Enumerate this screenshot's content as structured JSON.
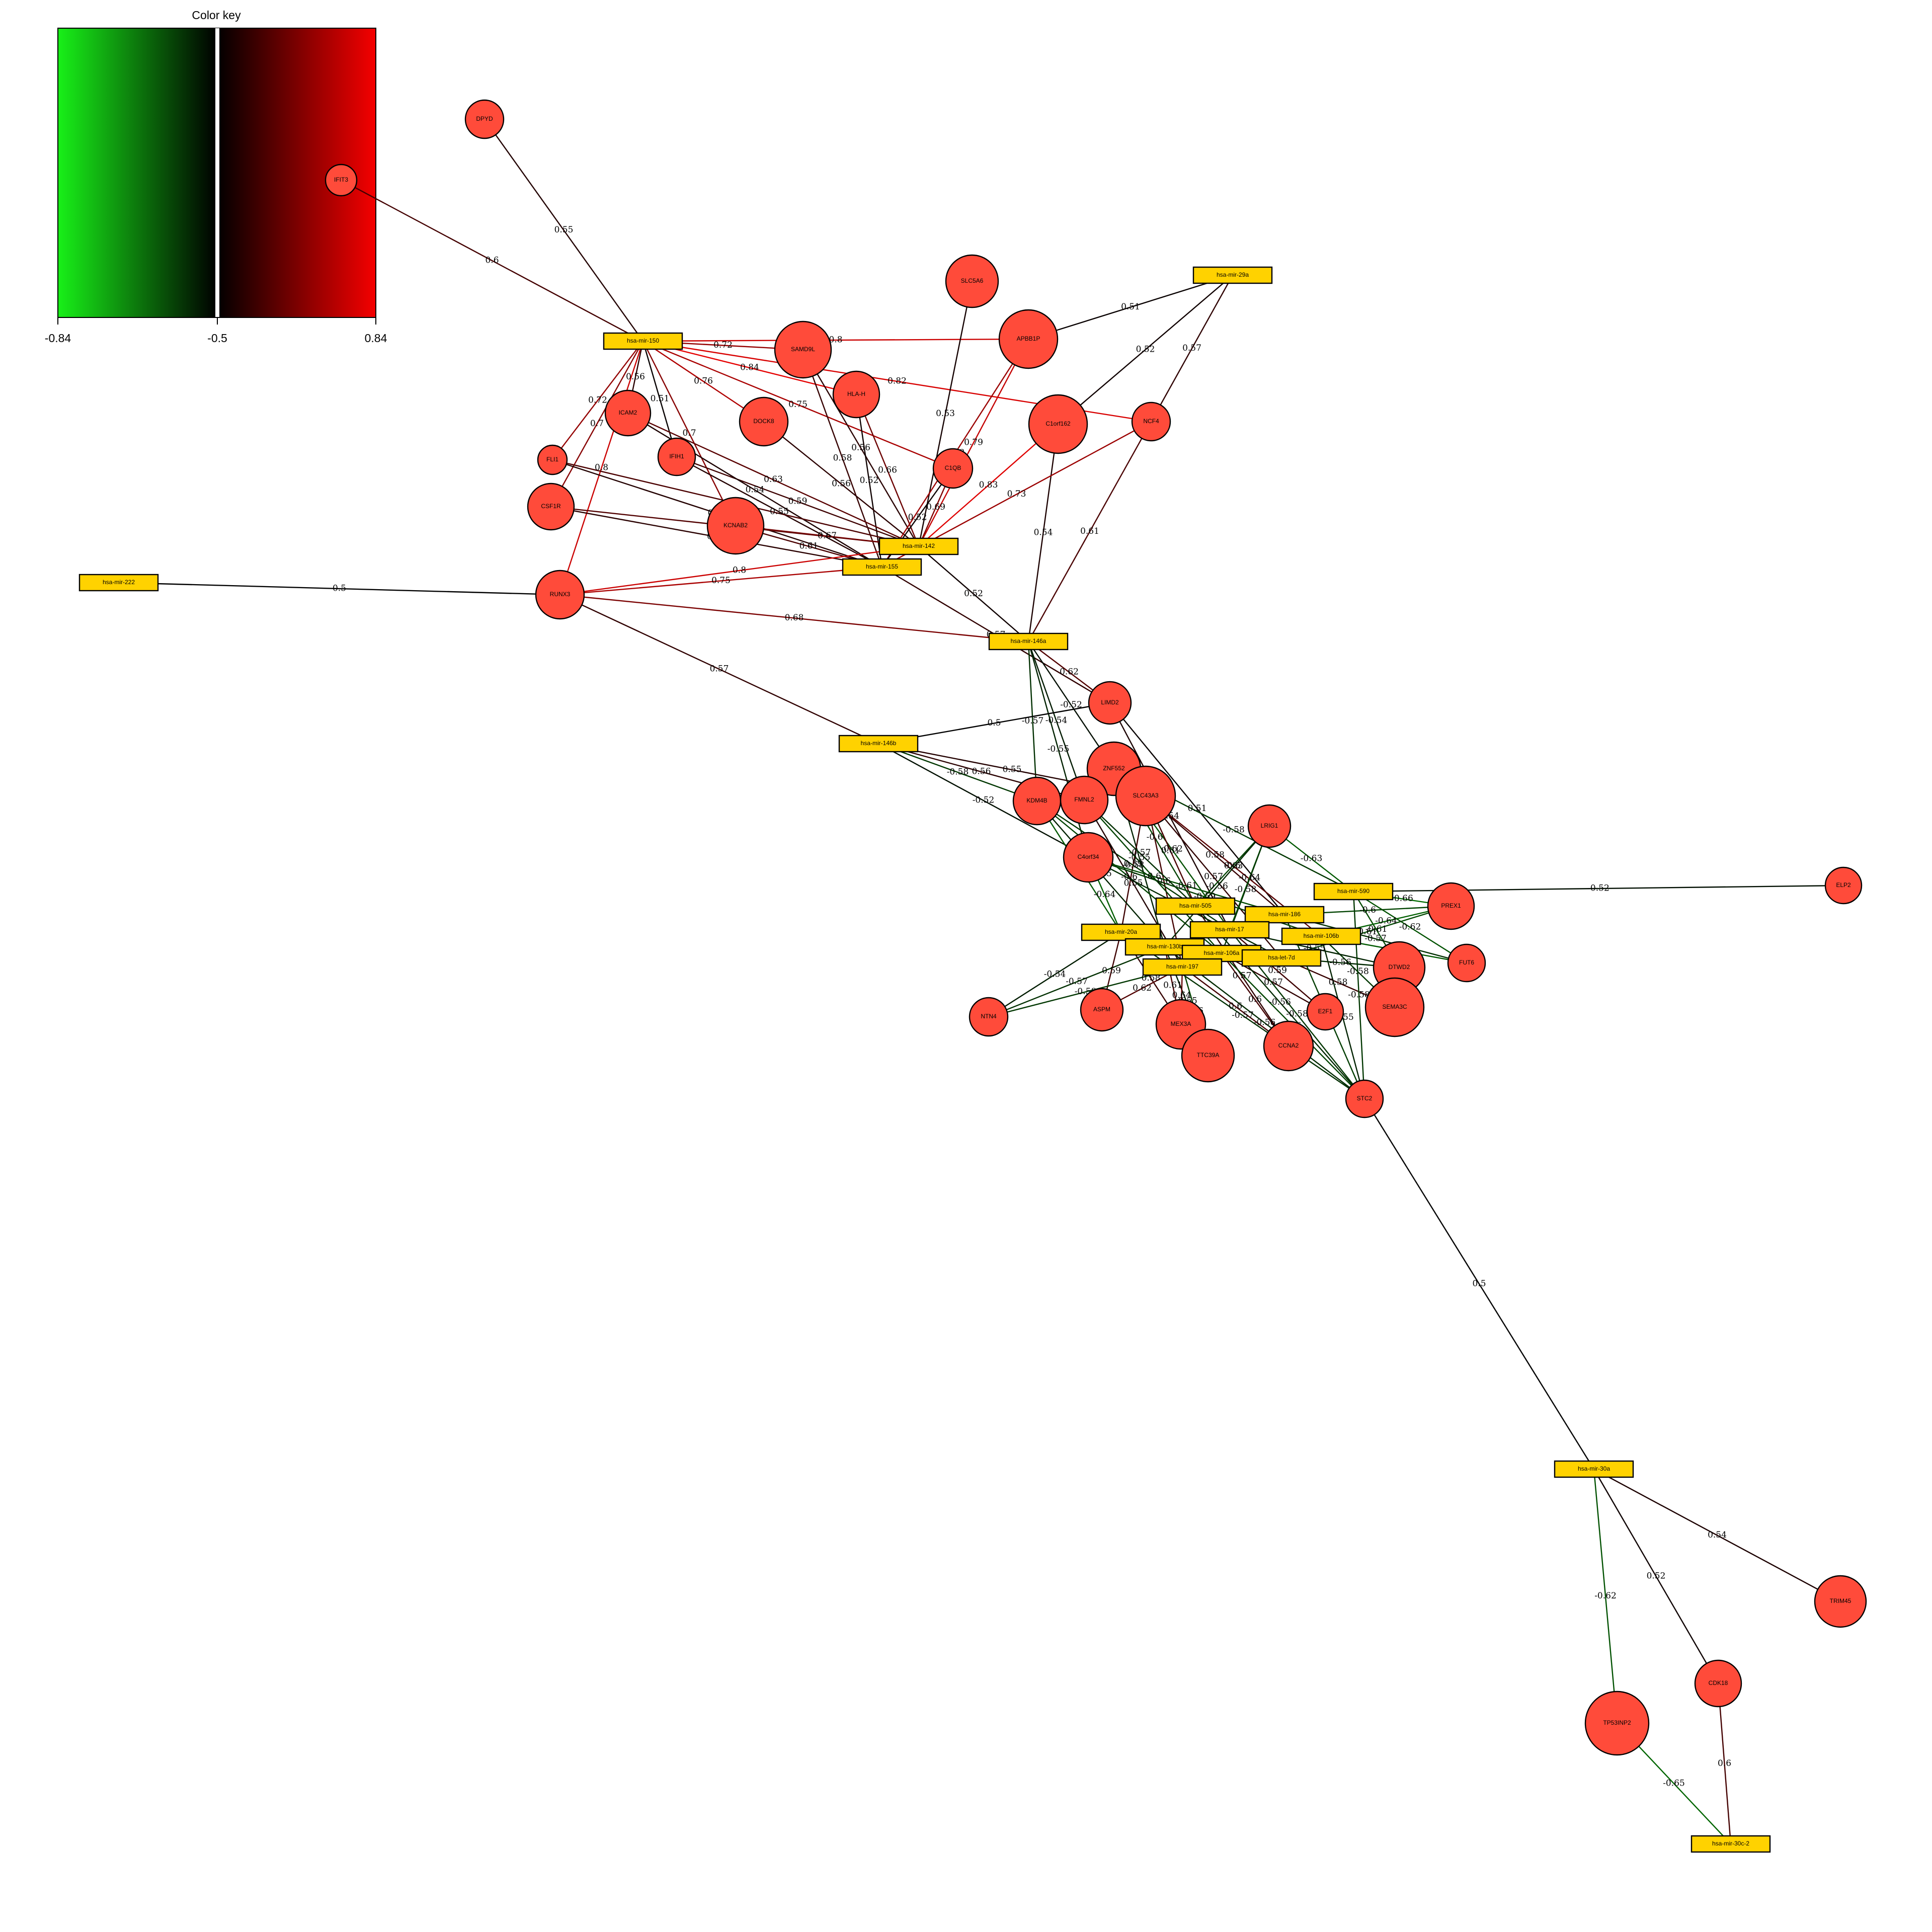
{
  "color_key": {
    "title": "Color key",
    "ticks": [
      "-0.84",
      "-0.5",
      "0.84"
    ],
    "colors": {
      "negative": "#00ff00",
      "zero": "#000000",
      "positive": "#ff0000"
    }
  },
  "colors": {
    "mirna_fill": "#ffd200",
    "gene_fill": "#ff4b3a",
    "node_border": "#000000"
  },
  "mirnas": [
    "hsa-mir-150",
    "hsa-mir-29a",
    "hsa-mir-142",
    "hsa-mir-155",
    "hsa-mir-222",
    "hsa-mir-146a",
    "hsa-mir-146b",
    "hsa-mir-590",
    "hsa-mir-505",
    "hsa-mir-186",
    "hsa-mir-17",
    "hsa-mir-106b",
    "hsa-mir-20a",
    "hsa-mir-130b",
    "hsa-mir-106a",
    "hsa-let-7d",
    "hsa-mir-197",
    "hsa-mir-30a",
    "hsa-mir-30c-2"
  ],
  "genes": [
    "DPYD",
    "IFIT3",
    "SLC5A6",
    "SAMD9L",
    "APBB1P",
    "HLA-H",
    "ICAM2",
    "DOCK8",
    "C1orf162",
    "NCF4",
    "IFIH1",
    "FLI1",
    "C1QB",
    "CSF1R",
    "KCNAB2",
    "RUNX3",
    "LIMD2",
    "ZNF552",
    "KDM4B",
    "FMNL2",
    "SLC43A3",
    "LRIG1",
    "C4orf34",
    "ELP2",
    "PREX1",
    "DTWD2",
    "FUT6",
    "SEMA3C",
    "NTN4",
    "ASPM",
    "MEX3A",
    "E2F1",
    "CCNA2",
    "TTC39A",
    "STC2",
    "TRIM45",
    "CDK18",
    "TP53INP2"
  ],
  "edges": [
    {
      "s": "DPYD",
      "t": "hsa-mir-150",
      "w": 0.55
    },
    {
      "s": "IFIT3",
      "t": "hsa-mir-150",
      "w": 0.6
    },
    {
      "s": "hsa-mir-150",
      "t": "SAMD9L",
      "w": 0.72
    },
    {
      "s": "hsa-mir-150",
      "t": "APBB1P",
      "w": 0.8
    },
    {
      "s": "hsa-mir-150",
      "t": "HLA-H",
      "w": 0.84
    },
    {
      "s": "hsa-mir-150",
      "t": "DOCK8",
      "w": 0.76
    },
    {
      "s": "hsa-mir-150",
      "t": "NCF4",
      "w": 0.82
    },
    {
      "s": "hsa-mir-150",
      "t": "ICAM2",
      "w": 0.56
    },
    {
      "s": "hsa-mir-150",
      "t": "IFIH1",
      "w": 0.51
    },
    {
      "s": "hsa-mir-150",
      "t": "FLI1",
      "w": 0.72
    },
    {
      "s": "hsa-mir-150",
      "t": "CSF1R",
      "w": 0.7
    },
    {
      "s": "hsa-mir-150",
      "t": "RUNX3",
      "w": 0.8
    },
    {
      "s": "hsa-mir-150",
      "t": "KCNAB2",
      "w": 0.7
    },
    {
      "s": "hsa-mir-150",
      "t": "C1QB",
      "w": 0.75
    },
    {
      "s": "hsa-mir-29a",
      "t": "APBB1P",
      "w": 0.51
    },
    {
      "s": "hsa-mir-29a",
      "t": "C1orf162",
      "w": 0.52
    },
    {
      "s": "hsa-mir-29a",
      "t": "NCF4",
      "w": 0.57
    },
    {
      "s": "SLC5A6",
      "t": "hsa-mir-142",
      "w": 0.53
    },
    {
      "s": "SAMD9L",
      "t": "hsa-mir-142",
      "w": 0.56
    },
    {
      "s": "SAMD9L",
      "t": "hsa-mir-155",
      "w": 0.58
    },
    {
      "s": "HLA-H",
      "t": "hsa-mir-142",
      "w": 0.66
    },
    {
      "s": "HLA-H",
      "t": "hsa-mir-155",
      "w": 0.52
    },
    {
      "s": "DOCK8",
      "t": "hsa-mir-142",
      "w": 0.56
    },
    {
      "s": "APBB1P",
      "t": "hsa-mir-142",
      "w": 0.79
    },
    {
      "s": "APBB1P",
      "t": "hsa-mir-155",
      "w": 0.73
    },
    {
      "s": "C1orf162",
      "t": "hsa-mir-142",
      "w": 0.83
    },
    {
      "s": "C1orf162",
      "t": "hsa-mir-146a",
      "w": 0.54
    },
    {
      "s": "NCF4",
      "t": "hsa-mir-155",
      "w": 0.73
    },
    {
      "s": "NCF4",
      "t": "hsa-mir-146a",
      "w": 0.61
    },
    {
      "s": "C1QB",
      "t": "hsa-mir-142",
      "w": 0.69
    },
    {
      "s": "C1QB",
      "t": "hsa-mir-155",
      "w": 0.52
    },
    {
      "s": "IFIH1",
      "t": "hsa-mir-142",
      "w": 0.59
    },
    {
      "s": "IFIH1",
      "t": "hsa-mir-155",
      "w": 0.55
    },
    {
      "s": "ICAM2",
      "t": "hsa-mir-142",
      "w": 0.63
    },
    {
      "s": "ICAM2",
      "t": "hsa-mir-155",
      "w": 0.54
    },
    {
      "s": "FLI1",
      "t": "hsa-mir-142",
      "w": 0.61
    },
    {
      "s": "FLI1",
      "t": "hsa-mir-155",
      "w": 0.55
    },
    {
      "s": "CSF1R",
      "t": "hsa-mir-142",
      "w": 0.62
    },
    {
      "s": "CSF1R",
      "t": "hsa-mir-155",
      "w": 0.56
    },
    {
      "s": "KCNAB2",
      "t": "hsa-mir-142",
      "w": 0.67
    },
    {
      "s": "KCNAB2",
      "t": "hsa-mir-155",
      "w": 0.61
    },
    {
      "s": "RUNX3",
      "t": "hsa-mir-142",
      "w": 0.8
    },
    {
      "s": "RUNX3",
      "t": "hsa-mir-155",
      "w": 0.75
    },
    {
      "s": "RUNX3",
      "t": "hsa-mir-146a",
      "w": 0.68
    },
    {
      "s": "RUNX3",
      "t": "hsa-mir-146b",
      "w": 0.57
    },
    {
      "s": "hsa-mir-222",
      "t": "RUNX3",
      "w": 0.5
    },
    {
      "s": "hsa-mir-142",
      "t": "hsa-mir-146a",
      "w": 0.52
    },
    {
      "s": "hsa-mir-155",
      "t": "LIMD2",
      "w": 0.57
    },
    {
      "s": "hsa-mir-146a",
      "t": "LIMD2",
      "w": 0.62
    },
    {
      "s": "hsa-mir-146a",
      "t": "ZNF552",
      "w": -0.52
    },
    {
      "s": "hsa-mir-146a",
      "t": "KDM4B",
      "w": -0.57
    },
    {
      "s": "hsa-mir-146a",
      "t": "FMNL2",
      "w": -0.54
    },
    {
      "s": "hsa-mir-146a",
      "t": "C4orf34",
      "w": -0.55
    },
    {
      "s": "hsa-mir-146b",
      "t": "LIMD2",
      "w": 0.5
    },
    {
      "s": "hsa-mir-146b",
      "t": "KDM4B",
      "w": -0.58
    },
    {
      "s": "hsa-mir-146b",
      "t": "FMNL2",
      "w": 0.56
    },
    {
      "s": "hsa-mir-146b",
      "t": "C4orf34",
      "w": -0.52
    },
    {
      "s": "hsa-mir-146b",
      "t": "SLC43A3",
      "w": 0.55
    },
    {
      "s": "LIMD2",
      "t": "hsa-mir-186",
      "w": 0.51
    },
    {
      "s": "LIMD2",
      "t": "hsa-mir-17",
      "w": 0.54
    },
    {
      "s": "ZNF552",
      "t": "hsa-mir-505",
      "w": -0.6
    },
    {
      "s": "ZNF552",
      "t": "hsa-mir-17",
      "w": -0.62
    },
    {
      "s": "ZNF552",
      "t": "hsa-mir-590",
      "w": -0.58
    },
    {
      "s": "ZNF552",
      "t": "hsa-mir-130b",
      "w": -0.55
    },
    {
      "s": "SLC43A3",
      "t": "hsa-mir-505",
      "w": 0.61
    },
    {
      "s": "SLC43A3",
      "t": "hsa-mir-186",
      "w": 0.58
    },
    {
      "s": "SLC43A3",
      "t": "hsa-mir-106b",
      "w": 0.63
    },
    {
      "s": "SLC43A3",
      "t": "hsa-let-7d",
      "w": 0.57
    },
    {
      "s": "SLC43A3",
      "t": "hsa-mir-197",
      "w": 0.6
    },
    {
      "s": "SLC43A3",
      "t": "hsa-mir-20a",
      "w": 0.59
    },
    {
      "s": "KDM4B",
      "t": "hsa-mir-20a",
      "w": -0.63
    },
    {
      "s": "KDM4B",
      "t": "hsa-mir-106a",
      "w": -0.6
    },
    {
      "s": "KDM4B",
      "t": "hsa-mir-17",
      "w": -0.58
    },
    {
      "s": "KDM4B",
      "t": "hsa-mir-130b",
      "w": -0.55
    },
    {
      "s": "FMNL2",
      "t": "hsa-mir-505",
      "w": -0.57
    },
    {
      "s": "FMNL2",
      "t": "hsa-mir-197",
      "w": 0.55
    },
    {
      "s": "FMNL2",
      "t": "hsa-mir-106a",
      "w": -0.6
    },
    {
      "s": "C4orf34",
      "t": "hsa-mir-20a",
      "w": -0.64
    },
    {
      "s": "C4orf34",
      "t": "hsa-mir-106b",
      "w": -0.59
    },
    {
      "s": "C4orf34",
      "t": "hsa-let-7d",
      "w": -0.56
    },
    {
      "s": "C4orf34",
      "t": "hsa-mir-186",
      "w": -0.61
    },
    {
      "s": "LRIG1",
      "t": "hsa-mir-590",
      "w": -0.63
    },
    {
      "s": "LRIG1",
      "t": "hsa-mir-505",
      "w": -0.6
    },
    {
      "s": "LRIG1",
      "t": "hsa-mir-17",
      "w": -0.64
    },
    {
      "s": "LRIG1",
      "t": "hsa-mir-106a",
      "w": -0.58
    },
    {
      "s": "LRIG1",
      "t": "hsa-mir-130b",
      "w": -0.56
    },
    {
      "s": "hsa-mir-590",
      "t": "ELP2",
      "w": -0.52
    },
    {
      "s": "hsa-mir-590",
      "t": "PREX1",
      "w": -0.66
    },
    {
      "s": "hsa-mir-590",
      "t": "FUT6",
      "w": -0.62
    },
    {
      "s": "hsa-mir-590",
      "t": "DTWD2",
      "w": -0.61
    },
    {
      "s": "hsa-mir-186",
      "t": "PREX1",
      "w": -0.6
    },
    {
      "s": "hsa-mir-186",
      "t": "FUT6",
      "w": -0.57
    },
    {
      "s": "hsa-mir-106b",
      "t": "PREX1",
      "w": -0.64
    },
    {
      "s": "hsa-mir-106b",
      "t": "FUT6",
      "w": -0.63
    },
    {
      "s": "hsa-mir-106b",
      "t": "SEMA3C",
      "w": -0.58
    },
    {
      "s": "hsa-let-7d",
      "t": "PREX1",
      "w": -0.61
    },
    {
      "s": "hsa-let-7d",
      "t": "DTWD2",
      "w": -0.56
    },
    {
      "s": "hsa-let-7d",
      "t": "SEMA3C",
      "w": 0.58
    },
    {
      "s": "hsa-mir-17",
      "t": "DTWD2",
      "w": -0.55
    },
    {
      "s": "hsa-mir-17",
      "t": "E2F1",
      "w": 0.59
    },
    {
      "s": "hsa-mir-106a",
      "t": "E2F1",
      "w": 0.57
    },
    {
      "s": "hsa-mir-106a",
      "t": "CCNA2",
      "w": 0.6
    },
    {
      "s": "hsa-mir-20a",
      "t": "NTN4",
      "w": -0.54
    },
    {
      "s": "hsa-mir-20a",
      "t": "ASPM",
      "w": 0.59
    },
    {
      "s": "hsa-mir-20a",
      "t": "MEX3A",
      "w": 0.58
    },
    {
      "s": "hsa-mir-130b",
      "t": "NTN4",
      "w": -0.57
    },
    {
      "s": "hsa-mir-130b",
      "t": "MEX3A",
      "w": 0.61
    },
    {
      "s": "hsa-mir-130b",
      "t": "TTC39A",
      "w": -0.55
    },
    {
      "s": "hsa-mir-197",
      "t": "NTN4",
      "w": -0.58
    },
    {
      "s": "hsa-mir-197",
      "t": "ASPM",
      "w": 0.62
    },
    {
      "s": "hsa-mir-197",
      "t": "MEX3A",
      "w": 0.64
    },
    {
      "s": "hsa-mir-197",
      "t": "TTC39A",
      "w": -0.6
    },
    {
      "s": "hsa-mir-197",
      "t": "CCNA2",
      "w": 0.6
    },
    {
      "s": "hsa-mir-505",
      "t": "CCNA2",
      "w": 0.57
    },
    {
      "s": "hsa-mir-505",
      "t": "STC2",
      "w": -0.56
    },
    {
      "s": "hsa-mir-186",
      "t": "STC2",
      "w": -0.59
    },
    {
      "s": "hsa-mir-17",
      "t": "STC2",
      "w": -0.58
    },
    {
      "s": "hsa-mir-106b",
      "t": "STC2",
      "w": -0.55
    },
    {
      "s": "hsa-mir-106a",
      "t": "STC2",
      "w": -0.6
    },
    {
      "s": "hsa-mir-20a",
      "t": "STC2",
      "w": -0.57
    },
    {
      "s": "hsa-mir-130b",
      "t": "STC2",
      "w": -0.56
    },
    {
      "s": "hsa-mir-590",
      "t": "STC2",
      "w": -0.58
    },
    {
      "s": "STC2",
      "t": "hsa-mir-30a",
      "w": 0.5
    },
    {
      "s": "hsa-mir-30a",
      "t": "TRIM45",
      "w": 0.54
    },
    {
      "s": "hsa-mir-30a",
      "t": "CDK18",
      "w": 0.52
    },
    {
      "s": "hsa-mir-30a",
      "t": "TP53INP2",
      "w": -0.62
    },
    {
      "s": "TP53INP2",
      "t": "hsa-mir-30c-2",
      "w": -0.65
    },
    {
      "s": "CDK18",
      "t": "hsa-mir-30c-2",
      "w": 0.6
    }
  ]
}
